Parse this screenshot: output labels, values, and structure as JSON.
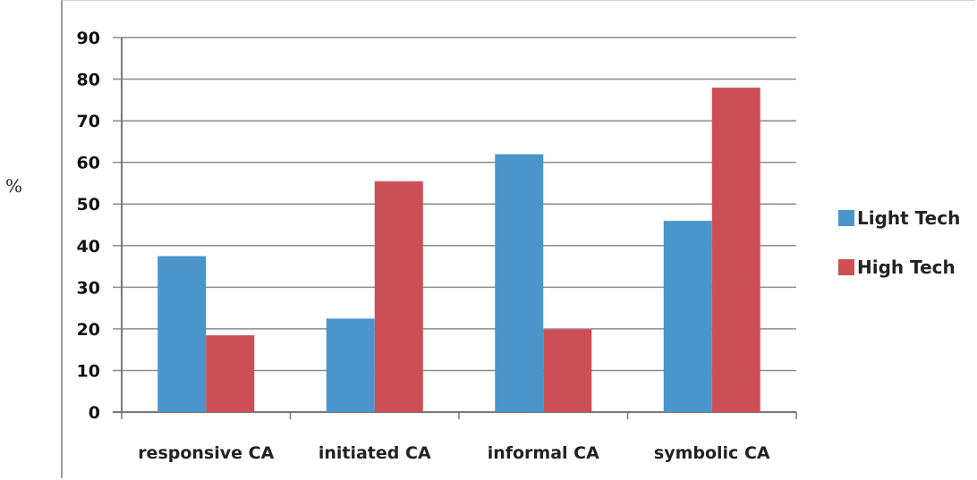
{
  "chart_data": {
    "type": "bar",
    "ylabel": "%",
    "ylim": [
      0,
      90
    ],
    "yticks": [
      "0",
      "10",
      "20",
      "30",
      "40",
      "50",
      "60",
      "70",
      "80",
      "90"
    ],
    "grid": true,
    "legend_position": "right",
    "categories": [
      "responsive CA",
      "initiated CA",
      "informal CA",
      "symbolic CA"
    ],
    "series": [
      {
        "name": "Light Tech",
        "color": "#4a96cc",
        "values": [
          37.5,
          22.5,
          62,
          46
        ]
      },
      {
        "name": "High Tech",
        "color": "#cc4f55",
        "values": [
          18.5,
          55.5,
          20,
          78
        ]
      }
    ]
  }
}
